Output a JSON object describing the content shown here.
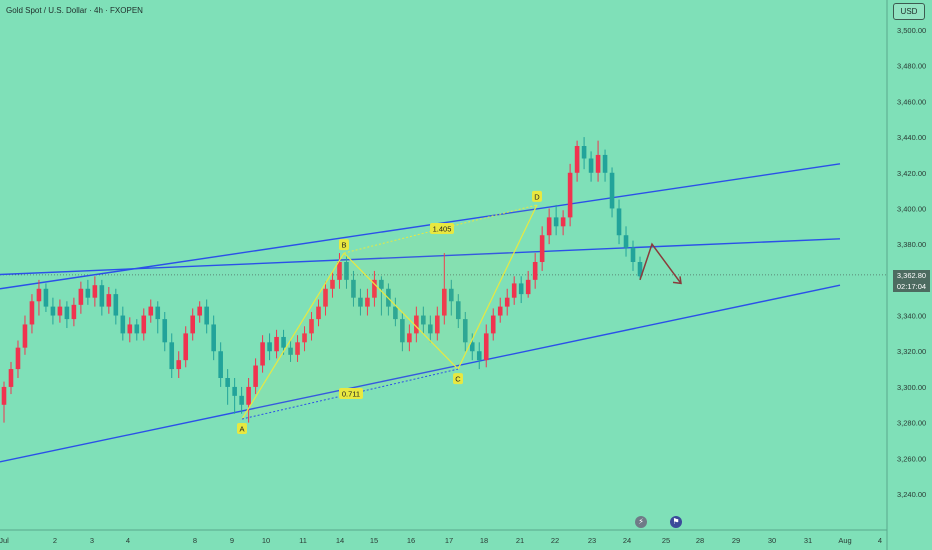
{
  "header": {
    "title": "Gold Spot / U.S. Dollar · 4h · FXOPEN",
    "currency": "USD"
  },
  "price_tag": {
    "price": "3,362.80",
    "countdown": "02:17:04"
  },
  "icons": {
    "flash": "flash-icon",
    "flag": "us-flag-icon"
  },
  "colors": {
    "background": "#7fe0b8",
    "bull": "#f0334f",
    "bear": "#22a39a",
    "trendline": "#2b50e8",
    "pattern": "#e8e840",
    "arrow": "#8a3b3b"
  },
  "chart_data": {
    "type": "candlestick",
    "title": "Gold Spot / U.S. Dollar · 4h · FXOPEN",
    "y_axis": {
      "unit": "USD",
      "ticks": [
        "3,500.00",
        "3,480.00",
        "3,460.00",
        "3,440.00",
        "3,420.00",
        "3,400.00",
        "3,380.00",
        "3,360.00",
        "3,340.00",
        "3,320.00",
        "3,300.00",
        "3,280.00",
        "3,260.00",
        "3,240.00"
      ],
      "ylim": [
        3230,
        3510
      ]
    },
    "x_axis": {
      "ticks": [
        "Jul",
        "2",
        "3",
        "4",
        "8",
        "9",
        "10",
        "11",
        "14",
        "15",
        "16",
        "17",
        "18",
        "21",
        "22",
        "23",
        "24",
        "25",
        "28",
        "29",
        "30",
        "31",
        "Aug",
        "4"
      ]
    },
    "last_price": 3362.8,
    "candles": [
      [
        3290,
        3300,
        3280,
        3303
      ],
      [
        3300,
        3310,
        3296,
        3314
      ],
      [
        3310,
        3322,
        3305,
        3326
      ],
      [
        3322,
        3335,
        3318,
        3340
      ],
      [
        3335,
        3348,
        3330,
        3352
      ],
      [
        3348,
        3355,
        3340,
        3360
      ],
      [
        3355,
        3345,
        3342,
        3358
      ],
      [
        3345,
        3340,
        3335,
        3350
      ],
      [
        3340,
        3345,
        3336,
        3349
      ],
      [
        3345,
        3338,
        3333,
        3348
      ],
      [
        3338,
        3346,
        3334,
        3350
      ],
      [
        3346,
        3355,
        3341,
        3359
      ],
      [
        3355,
        3350,
        3346,
        3360
      ],
      [
        3350,
        3357,
        3345,
        3362
      ],
      [
        3357,
        3345,
        3340,
        3360
      ],
      [
        3345,
        3352,
        3341,
        3356
      ],
      [
        3352,
        3340,
        3335,
        3355
      ],
      [
        3340,
        3330,
        3326,
        3345
      ],
      [
        3330,
        3335,
        3325,
        3339
      ],
      [
        3335,
        3330,
        3326,
        3338
      ],
      [
        3330,
        3340,
        3326,
        3344
      ],
      [
        3340,
        3345,
        3336,
        3349
      ],
      [
        3345,
        3338,
        3330,
        3348
      ],
      [
        3338,
        3325,
        3320,
        3342
      ],
      [
        3325,
        3310,
        3305,
        3330
      ],
      [
        3310,
        3315,
        3305,
        3320
      ],
      [
        3315,
        3330,
        3311,
        3334
      ],
      [
        3330,
        3340,
        3326,
        3344
      ],
      [
        3340,
        3345,
        3336,
        3348
      ],
      [
        3345,
        3335,
        3330,
        3349
      ],
      [
        3335,
        3320,
        3315,
        3340
      ],
      [
        3320,
        3305,
        3300,
        3325
      ],
      [
        3305,
        3300,
        3290,
        3310
      ],
      [
        3300,
        3295,
        3285,
        3305
      ],
      [
        3295,
        3290,
        3285,
        3300
      ],
      [
        3290,
        3300,
        3280,
        3305
      ],
      [
        3300,
        3312,
        3296,
        3316
      ],
      [
        3312,
        3325,
        3308,
        3329
      ],
      [
        3325,
        3320,
        3315,
        3330
      ],
      [
        3320,
        3328,
        3316,
        3332
      ],
      [
        3328,
        3322,
        3318,
        3332
      ],
      [
        3322,
        3318,
        3314,
        3326
      ],
      [
        3318,
        3325,
        3314,
        3329
      ],
      [
        3325,
        3330,
        3320,
        3334
      ],
      [
        3330,
        3338,
        3326,
        3342
      ],
      [
        3338,
        3345,
        3334,
        3349
      ],
      [
        3345,
        3355,
        3340,
        3359
      ],
      [
        3355,
        3360,
        3350,
        3365
      ],
      [
        3360,
        3370,
        3355,
        3375
      ],
      [
        3370,
        3360,
        3355,
        3374
      ],
      [
        3360,
        3350,
        3345,
        3365
      ],
      [
        3350,
        3345,
        3340,
        3355
      ],
      [
        3345,
        3350,
        3340,
        3355
      ],
      [
        3350,
        3360,
        3345,
        3365
      ],
      [
        3360,
        3355,
        3340,
        3362
      ],
      [
        3355,
        3345,
        3340,
        3358
      ],
      [
        3345,
        3338,
        3334,
        3350
      ],
      [
        3338,
        3325,
        3320,
        3342
      ],
      [
        3325,
        3330,
        3320,
        3335
      ],
      [
        3330,
        3340,
        3325,
        3345
      ],
      [
        3340,
        3335,
        3330,
        3345
      ],
      [
        3335,
        3330,
        3325,
        3340
      ],
      [
        3330,
        3340,
        3326,
        3345
      ],
      [
        3340,
        3355,
        3335,
        3375
      ],
      [
        3355,
        3348,
        3340,
        3360
      ],
      [
        3348,
        3338,
        3333,
        3352
      ],
      [
        3338,
        3325,
        3320,
        3342
      ],
      [
        3325,
        3320,
        3315,
        3330
      ],
      [
        3320,
        3315,
        3310,
        3325
      ],
      [
        3315,
        3330,
        3311,
        3335
      ],
      [
        3330,
        3340,
        3326,
        3344
      ],
      [
        3340,
        3345,
        3336,
        3350
      ],
      [
        3345,
        3350,
        3340,
        3355
      ],
      [
        3350,
        3358,
        3346,
        3362
      ],
      [
        3358,
        3352,
        3347,
        3362
      ],
      [
        3352,
        3360,
        3350,
        3365
      ],
      [
        3360,
        3370,
        3355,
        3375
      ],
      [
        3370,
        3385,
        3365,
        3390
      ],
      [
        3385,
        3395,
        3380,
        3400
      ],
      [
        3395,
        3390,
        3385,
        3402
      ],
      [
        3390,
        3395,
        3385,
        3399
      ],
      [
        3395,
        3420,
        3390,
        3425
      ],
      [
        3420,
        3435,
        3415,
        3438
      ],
      [
        3435,
        3428,
        3422,
        3440
      ],
      [
        3428,
        3420,
        3415,
        3432
      ],
      [
        3420,
        3430,
        3415,
        3438
      ],
      [
        3430,
        3420,
        3415,
        3433
      ],
      [
        3420,
        3400,
        3395,
        3423
      ],
      [
        3400,
        3385,
        3380,
        3405
      ],
      [
        3385,
        3378,
        3373,
        3390
      ],
      [
        3378,
        3370,
        3365,
        3382
      ],
      [
        3370,
        3362,
        3360,
        3373
      ]
    ],
    "trendlines": [
      {
        "from": [
          0,
          3355
        ],
        "to": [
          850,
          3425
        ]
      },
      {
        "from": [
          0,
          3363
        ],
        "to": [
          850,
          3383
        ]
      },
      {
        "from": [
          0,
          3258
        ],
        "to": [
          850,
          3357
        ]
      }
    ],
    "pattern": {
      "points": [
        {
          "label": "A",
          "value": 3282
        },
        {
          "label": "B",
          "value": 3375
        },
        {
          "label": "C",
          "value": 3310
        },
        {
          "label": "D",
          "value": 3402
        }
      ],
      "ratios": [
        "1.405",
        "0.711"
      ]
    }
  }
}
